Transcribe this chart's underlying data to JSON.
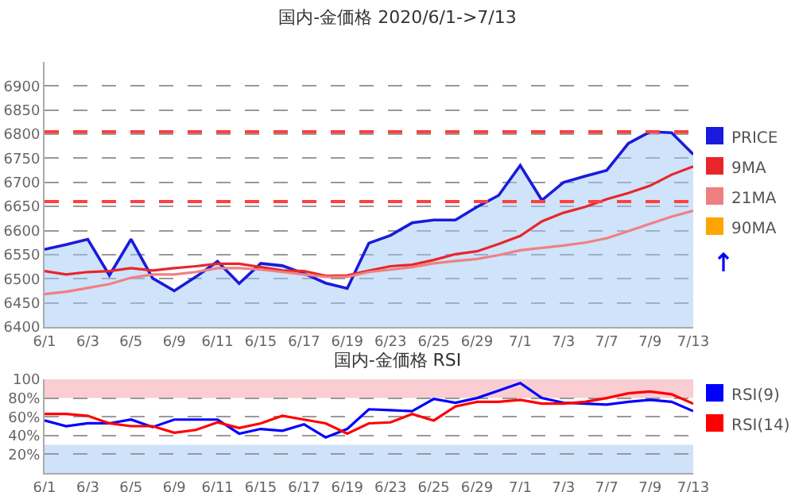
{
  "chart_data": [
    {
      "type": "line",
      "title": "国内-金価格 2020/6/1->7/13",
      "categories": [
        "6/1",
        null,
        "6/3",
        null,
        "6/5",
        null,
        "6/9",
        null,
        "6/11",
        null,
        "6/15",
        null,
        "6/17",
        null,
        "6/19",
        null,
        "6/23",
        null,
        "6/25",
        null,
        "6/29",
        null,
        "7/1",
        null,
        "7/3",
        null,
        "7/7",
        null,
        "7/9",
        null,
        "7/13"
      ],
      "series": [
        {
          "name": "PRICE",
          "type": "area",
          "color": "#1a1adc",
          "values": [
            6561,
            6571,
            6582,
            6507,
            6582,
            6501,
            6475,
            6504,
            6536,
            6490,
            6532,
            6527,
            6511,
            6491,
            6480,
            6574,
            6590,
            6616,
            6622,
            6622,
            6649,
            6673,
            6735,
            6663,
            6700,
            6713,
            6725,
            6781,
            6805,
            6803,
            6758
          ]
        },
        {
          "name": "9MA",
          "color": "#e8262a",
          "values": [
            6516,
            6509,
            6514,
            6516,
            6522,
            6517,
            6522,
            6526,
            6531,
            6531,
            6524,
            6517,
            6516,
            6506,
            6507,
            6517,
            6526,
            6529,
            6539,
            6551,
            6557,
            6572,
            6589,
            6619,
            6637,
            6649,
            6665,
            6678,
            6693,
            6716,
            6733
          ]
        },
        {
          "name": "21MA",
          "color": "#f08080",
          "values": [
            6468,
            6473,
            6481,
            6489,
            6502,
            6509,
            6509,
            6514,
            6522,
            6522,
            6519,
            6514,
            6509,
            6504,
            6504,
            6514,
            6519,
            6524,
            6532,
            6537,
            6541,
            6549,
            6559,
            6564,
            6569,
            6575,
            6584,
            6599,
            6614,
            6629,
            6641
          ]
        },
        {
          "name": "90MA",
          "color": "#ffa500",
          "values": [
            null,
            null,
            null,
            null,
            null,
            null,
            null,
            null,
            null,
            null,
            null,
            null,
            null,
            null,
            null,
            null,
            null,
            null,
            null,
            null,
            null,
            null,
            null,
            null,
            null,
            null,
            null,
            null,
            null,
            null,
            null
          ]
        }
      ],
      "ylim": [
        6400,
        6950
      ],
      "yticks": [
        6400,
        6450,
        6500,
        6550,
        6600,
        6650,
        6700,
        6750,
        6800,
        6850,
        6900
      ],
      "ref_lines": [
        {
          "axis": "y",
          "value": 6805,
          "color": "#ff4040",
          "line_style": "dashed"
        },
        {
          "axis": "y",
          "value": 6660,
          "color": "#ff4040",
          "line_style": "dashed"
        }
      ],
      "grid": "y",
      "legend": "right",
      "line_style": "solid",
      "marker": "none"
    },
    {
      "type": "line",
      "title": "国内-金価格 RSI",
      "categories": [
        "6/1",
        null,
        "6/3",
        null,
        "6/5",
        null,
        "6/9",
        null,
        "6/11",
        null,
        "6/15",
        null,
        "6/17",
        null,
        "6/19",
        null,
        "6/23",
        null,
        "6/25",
        null,
        "6/29",
        null,
        "7/1",
        null,
        "7/3",
        null,
        "7/7",
        null,
        "7/9",
        null,
        "7/13"
      ],
      "series": [
        {
          "name": "RSI(9)",
          "color": "#0000ff",
          "values": [
            56,
            50,
            53,
            53,
            57,
            49,
            57,
            57,
            57,
            42,
            47,
            45,
            52,
            38,
            47,
            68,
            67,
            66,
            79,
            75,
            80,
            88,
            96,
            80,
            75,
            74,
            73,
            76,
            78,
            76,
            66
          ]
        },
        {
          "name": "RSI(14)",
          "color": "#ff0000",
          "values": [
            63,
            63,
            61,
            53,
            50,
            50,
            43,
            46,
            54,
            48,
            53,
            61,
            57,
            53,
            42,
            53,
            54,
            63,
            56,
            71,
            76,
            76,
            78,
            74,
            74,
            76,
            80,
            85,
            87,
            84,
            74
          ]
        }
      ],
      "ylim": [
        0,
        100
      ],
      "yticks": [
        {
          "value": 20,
          "label": "20%"
        },
        {
          "value": 40,
          "label": "40%"
        },
        {
          "value": 60,
          "label": "60%"
        },
        {
          "value": 80,
          "label": "80%"
        },
        100
      ],
      "bands": [
        {
          "axis": "y",
          "from": 80,
          "to": 100,
          "color": "#f9cdd2"
        },
        {
          "axis": "y",
          "from": 0,
          "to": 30,
          "color": "#cfe2fa"
        }
      ],
      "grid": "y",
      "legend": "right",
      "line_style": "solid",
      "marker": "none"
    }
  ]
}
